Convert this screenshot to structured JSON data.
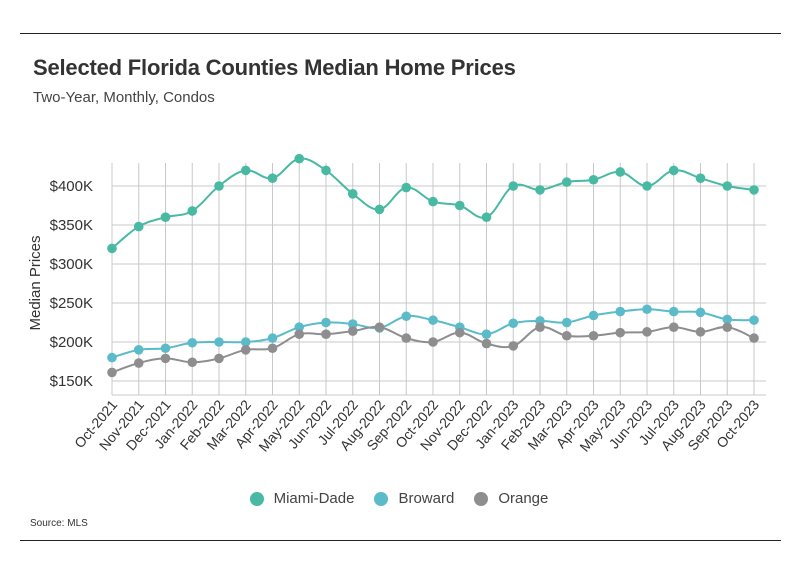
{
  "title": "Selected Florida Counties Median Home Prices",
  "subtitle": "Two-Year, Monthly, Condos",
  "source": "Source: MLS",
  "chart_data": {
    "type": "line",
    "ylabel": "Median Prices",
    "ylim": [
      140000,
      440000
    ],
    "yticks": [
      150000,
      200000,
      250000,
      300000,
      350000,
      400000
    ],
    "ytick_labels": [
      "$150K",
      "$200K",
      "$250K",
      "$300K",
      "$350K",
      "$400K"
    ],
    "grid": true,
    "legend_position": "bottom",
    "categories": [
      "Oct-2021",
      "Nov-2021",
      "Dec-2021",
      "Jan-2022",
      "Feb-2022",
      "Mar-2022",
      "Apr-2022",
      "May-2022",
      "Jun-2022",
      "Jul-2022",
      "Aug-2022",
      "Sep-2022",
      "Oct-2022",
      "Nov-2022",
      "Dec-2022",
      "Jan-2023",
      "Feb-2023",
      "Mar-2023",
      "Apr-2023",
      "May-2023",
      "Jun-2023",
      "Jul-2023",
      "Aug-2023",
      "Sep-2023",
      "Oct-2023"
    ],
    "series": [
      {
        "name": "Miami-Dade",
        "color": "#48B9A2",
        "values": [
          320000,
          348000,
          360000,
          368000,
          400000,
          420000,
          410000,
          435000,
          420000,
          390000,
          370000,
          398000,
          380000,
          375000,
          360000,
          400000,
          395000,
          405000,
          408000,
          418000,
          400000,
          420000,
          410000,
          400000,
          395000
        ]
      },
      {
        "name": "Broward",
        "color": "#5BBBC9",
        "values": [
          180000,
          190000,
          192000,
          199000,
          200000,
          200000,
          205000,
          219000,
          225000,
          223000,
          218000,
          233000,
          228000,
          219000,
          210000,
          224000,
          227000,
          225000,
          234000,
          239000,
          242000,
          239000,
          238000,
          229000,
          228000
        ]
      },
      {
        "name": "Orange",
        "color": "#8E8E90",
        "values": [
          161000,
          173000,
          179000,
          174000,
          179000,
          190000,
          192000,
          210000,
          210000,
          214000,
          219000,
          205000,
          200000,
          212000,
          198000,
          195000,
          219000,
          208000,
          208000,
          212000,
          213000,
          219000,
          213000,
          219000,
          205000
        ]
      }
    ]
  }
}
